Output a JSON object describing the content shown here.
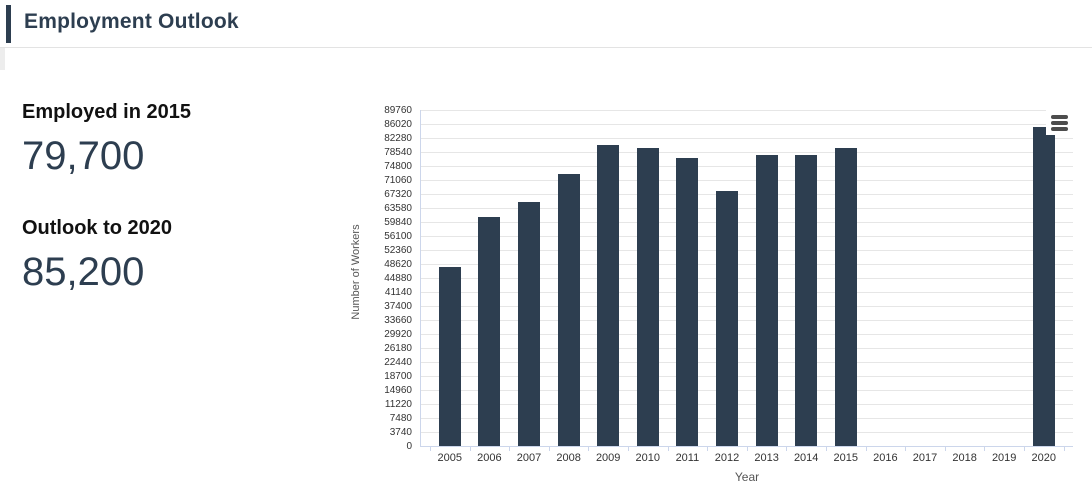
{
  "header": {
    "title": "Employment Outlook"
  },
  "stats": {
    "employed": {
      "label": "Employed in 2015",
      "value": "79,700"
    },
    "outlook": {
      "label": "Outlook to 2020",
      "value": "85,200"
    }
  },
  "chart_data": {
    "type": "bar",
    "title": "",
    "categories": [
      "2005",
      "2006",
      "2007",
      "2008",
      "2009",
      "2010",
      "2011",
      "2012",
      "2013",
      "2014",
      "2015",
      "2016",
      "2017",
      "2018",
      "2019",
      "2020"
    ],
    "values": [
      47900,
      61300,
      65200,
      72700,
      80300,
      79600,
      76900,
      68100,
      77800,
      77800,
      79700,
      null,
      null,
      null,
      null,
      85200
    ],
    "xlabel": "Year",
    "ylabel": "Number of Workers",
    "ylim": [
      0,
      89760
    ],
    "ytick_interval": 3740,
    "grid": true,
    "legend": "none",
    "bar_color": "#2d3e50"
  },
  "icons": {
    "context_menu": "hamburger-menu-icon"
  },
  "colors": {
    "accent_navy": "#2d3e50",
    "gridline": "#e6e6e6",
    "axis_line": "#ccd6eb",
    "tick_text": "#333333",
    "axis_title_text": "#555555",
    "stat_label_text": "#111111"
  }
}
